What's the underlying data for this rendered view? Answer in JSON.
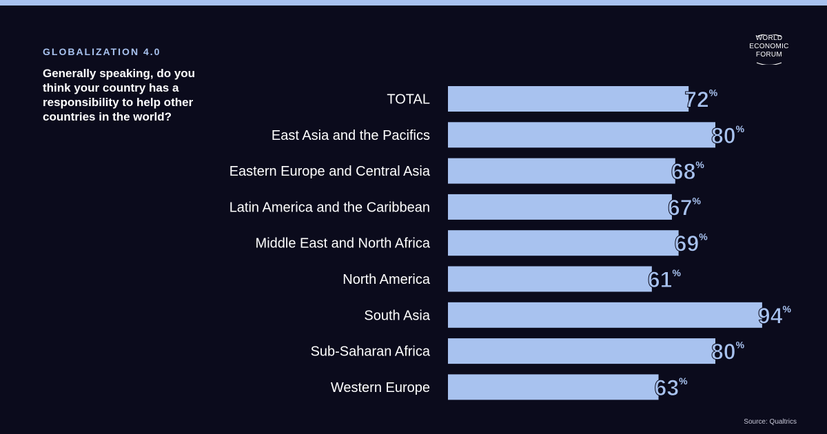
{
  "header": {
    "eyebrow": "GLOBALIZATION 4.0",
    "question": "Generally speaking, do you think your country has a responsibility to help other countries in the world?"
  },
  "logo": {
    "lines": [
      "WORLD",
      "ECONOMIC",
      "FORUM"
    ]
  },
  "source": "Source: Qualtrics",
  "colors": {
    "background": "#0b0b1c",
    "bar": "#a8c2ef",
    "label": "#ffffff"
  },
  "chart_data": {
    "type": "bar",
    "orientation": "horizontal",
    "title": "",
    "xlabel": "",
    "ylabel": "",
    "unit": "%",
    "xlim": [
      0,
      100
    ],
    "grid": false,
    "categories": [
      "TOTAL",
      "East Asia and the Pacifics",
      "Eastern Europe and Central Asia",
      "Latin America and the Caribbean",
      "Middle East and North Africa",
      "North America",
      "South Asia",
      "Sub-Saharan Africa",
      "Western Europe"
    ],
    "values": [
      72,
      80,
      68,
      67,
      69,
      61,
      94,
      80,
      63
    ]
  }
}
